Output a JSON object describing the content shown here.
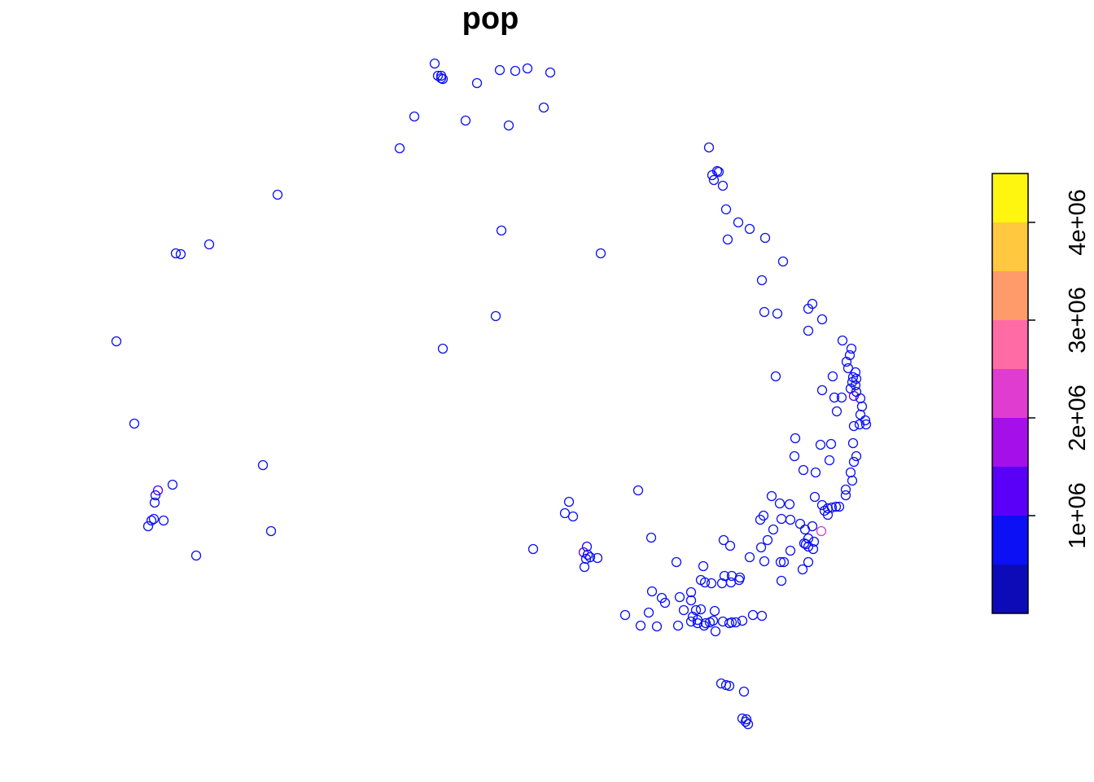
{
  "chart_data": {
    "type": "scatter",
    "title": "pop",
    "xlabel": "",
    "ylabel": "",
    "grid": false,
    "axes_visible": false,
    "marker": "open-circle",
    "legend": {
      "placement": "right",
      "type": "continuous-colorbar",
      "range": [
        0,
        4500000
      ],
      "bins": [
        {
          "from": 0,
          "to": 500000,
          "color": "#0D0BB8"
        },
        {
          "from": 500000,
          "to": 1000000,
          "color": "#0B10F5"
        },
        {
          "from": 1000000,
          "to": 1500000,
          "color": "#5A00F9"
        },
        {
          "from": 1500000,
          "to": 2000000,
          "color": "#A40FEA"
        },
        {
          "from": 2000000,
          "to": 2500000,
          "color": "#E03CD0"
        },
        {
          "from": 2500000,
          "to": 3000000,
          "color": "#FF6BA5"
        },
        {
          "from": 3000000,
          "to": 3500000,
          "color": "#FF9A6B"
        },
        {
          "from": 3500000,
          "to": 4000000,
          "color": "#FFC83F"
        },
        {
          "from": 4000000,
          "to": 4500000,
          "color": "#FFF60F"
        }
      ],
      "ticks": [
        {
          "value": 1000000,
          "label": "1e+06"
        },
        {
          "value": 2000000,
          "label": "2e+06"
        },
        {
          "value": 3000000,
          "label": "3e+06"
        },
        {
          "value": 4000000,
          "label": "4e+06"
        }
      ]
    },
    "points_note": "",
    "points": [
      [
        534,
        78,
        1
      ],
      [
        542,
        93,
        1
      ],
      [
        542,
        96,
        1
      ],
      [
        538,
        93,
        1
      ],
      [
        544,
        97,
        1
      ],
      [
        586,
        102,
        1
      ],
      [
        614,
        86,
        1
      ],
      [
        633,
        87,
        1
      ],
      [
        648,
        84,
        1
      ],
      [
        676,
        89,
        1
      ],
      [
        668,
        132,
        1
      ],
      [
        509,
        143,
        1
      ],
      [
        572,
        148,
        1
      ],
      [
        625,
        154,
        1
      ],
      [
        491,
        182,
        1
      ],
      [
        341,
        239,
        1
      ],
      [
        616,
        283,
        1
      ],
      [
        257,
        300,
        1
      ],
      [
        216,
        311,
        1
      ],
      [
        222,
        312,
        1
      ],
      [
        738,
        311,
        1
      ],
      [
        609,
        388,
        1
      ],
      [
        143,
        419,
        1
      ],
      [
        544,
        428,
        1
      ],
      [
        165,
        520,
        1
      ],
      [
        323,
        571,
        1
      ],
      [
        194,
        602,
        2
      ],
      [
        191,
        608,
        1
      ],
      [
        212,
        595,
        1
      ],
      [
        190,
        617,
        1
      ],
      [
        189,
        637,
        1
      ],
      [
        186,
        639,
        1
      ],
      [
        201,
        639,
        1
      ],
      [
        182,
        646,
        1
      ],
      [
        333,
        652,
        1
      ],
      [
        241,
        682,
        1
      ],
      [
        871,
        181,
        1
      ],
      [
        881,
        210,
        1
      ],
      [
        875,
        215,
        1
      ],
      [
        883,
        211,
        1
      ],
      [
        877,
        221,
        1
      ],
      [
        888,
        228,
        1
      ],
      [
        892,
        257,
        1
      ],
      [
        907,
        273,
        1
      ],
      [
        921,
        281,
        1
      ],
      [
        894,
        294,
        1
      ],
      [
        940,
        292,
        1
      ],
      [
        962,
        321,
        1
      ],
      [
        936,
        344,
        1
      ],
      [
        998,
        373,
        1
      ],
      [
        993,
        379,
        1
      ],
      [
        939,
        383,
        1
      ],
      [
        955,
        385,
        1
      ],
      [
        1010,
        392,
        1
      ],
      [
        993,
        406,
        1
      ],
      [
        1035,
        418,
        1
      ],
      [
        1046,
        428,
        1
      ],
      [
        1044,
        436,
        1
      ],
      [
        1040,
        444,
        1
      ],
      [
        1042,
        452,
        1
      ],
      [
        1051,
        457,
        1
      ],
      [
        1048,
        463,
        1
      ],
      [
        1052,
        465,
        1
      ],
      [
        1047,
        469,
        1
      ],
      [
        1051,
        473,
        1
      ],
      [
        1045,
        477,
        1
      ],
      [
        1052,
        481,
        1
      ],
      [
        1049,
        486,
        2
      ],
      [
        1023,
        462,
        1
      ],
      [
        953,
        462,
        1
      ],
      [
        1010,
        479,
        1
      ],
      [
        1025,
        488,
        1
      ],
      [
        1034,
        488,
        1
      ],
      [
        1057,
        489,
        1
      ],
      [
        1059,
        499,
        1
      ],
      [
        1057,
        509,
        1
      ],
      [
        1028,
        505,
        1
      ],
      [
        1063,
        516,
        1
      ],
      [
        1056,
        521,
        1
      ],
      [
        1064,
        521,
        1
      ],
      [
        1049,
        523,
        1
      ],
      [
        977,
        538,
        1
      ],
      [
        1008,
        546,
        1
      ],
      [
        1021,
        545,
        1
      ],
      [
        1048,
        544,
        1
      ],
      [
        976,
        560,
        1
      ],
      [
        1019,
        565,
        1
      ],
      [
        1052,
        560,
        1
      ],
      [
        1049,
        567,
        1
      ],
      [
        987,
        577,
        1
      ],
      [
        1002,
        580,
        1
      ],
      [
        1045,
        580,
        1
      ],
      [
        1047,
        590,
        1
      ],
      [
        1039,
        601,
        1
      ],
      [
        1039,
        608,
        1
      ],
      [
        948,
        609,
        1
      ],
      [
        958,
        618,
        1
      ],
      [
        970,
        619,
        1
      ],
      [
        1001,
        610,
        1
      ],
      [
        1010,
        620,
        1
      ],
      [
        1017,
        624,
        1
      ],
      [
        1013,
        627,
        1
      ],
      [
        1022,
        623,
        1
      ],
      [
        1027,
        622,
        1
      ],
      [
        1031,
        622,
        1
      ],
      [
        1017,
        632,
        1
      ],
      [
        938,
        633,
        1
      ],
      [
        934,
        638,
        1
      ],
      [
        960,
        637,
        1
      ],
      [
        971,
        638,
        1
      ],
      [
        983,
        643,
        1
      ],
      [
        998,
        646,
        1
      ],
      [
        989,
        650,
        1
      ],
      [
        950,
        650,
        1
      ],
      [
        1009,
        652,
        4
      ],
      [
        993,
        661,
        1
      ],
      [
        1000,
        665,
        1
      ],
      [
        988,
        667,
        1
      ],
      [
        990,
        668,
        1
      ],
      [
        993,
        671,
        1
      ],
      [
        999,
        674,
        1
      ],
      [
        935,
        672,
        1
      ],
      [
        943,
        663,
        1
      ],
      [
        971,
        676,
        1
      ],
      [
        889,
        663,
        1
      ],
      [
        897,
        670,
        1
      ],
      [
        921,
        684,
        1
      ],
      [
        939,
        689,
        1
      ],
      [
        959,
        690,
        1
      ],
      [
        963,
        690,
        1
      ],
      [
        993,
        690,
        1
      ],
      [
        986,
        699,
        1
      ],
      [
        960,
        713,
        1
      ],
      [
        864,
        695,
        1
      ],
      [
        831,
        690,
        1
      ],
      [
        890,
        707,
        1
      ],
      [
        899,
        707,
        1
      ],
      [
        909,
        709,
        1
      ],
      [
        908,
        712,
        1
      ],
      [
        898,
        715,
        1
      ],
      [
        861,
        712,
        1
      ],
      [
        866,
        715,
        1
      ],
      [
        874,
        716,
        1
      ],
      [
        887,
        716,
        1
      ],
      [
        849,
        727,
        1
      ],
      [
        801,
        726,
        1
      ],
      [
        813,
        734,
        1
      ],
      [
        817,
        740,
        1
      ],
      [
        835,
        733,
        1
      ],
      [
        849,
        737,
        1
      ],
      [
        840,
        749,
        1
      ],
      [
        855,
        749,
        1
      ],
      [
        861,
        748,
        1
      ],
      [
        878,
        750,
        1
      ],
      [
        768,
        755,
        1
      ],
      [
        797,
        752,
        1
      ],
      [
        851,
        757,
        1
      ],
      [
        857,
        761,
        1
      ],
      [
        849,
        763,
        1
      ],
      [
        857,
        765,
        1
      ],
      [
        867,
        765,
        1
      ],
      [
        872,
        764,
        1
      ],
      [
        876,
        762,
        1
      ],
      [
        865,
        768,
        1
      ],
      [
        888,
        763,
        1
      ],
      [
        896,
        765,
        1
      ],
      [
        899,
        764,
        1
      ],
      [
        904,
        764,
        1
      ],
      [
        912,
        762,
        1
      ],
      [
        925,
        755,
        1
      ],
      [
        936,
        756,
        1
      ],
      [
        787,
        768,
        1
      ],
      [
        807,
        769,
        1
      ],
      [
        833,
        768,
        1
      ],
      [
        879,
        775,
        1
      ],
      [
        784,
        602,
        1
      ],
      [
        800,
        660,
        1
      ],
      [
        699,
        616,
        1
      ],
      [
        694,
        630,
        1
      ],
      [
        704,
        634,
        1
      ],
      [
        655,
        674,
        1
      ],
      [
        721,
        671,
        1
      ],
      [
        717,
        678,
        2
      ],
      [
        722,
        681,
        1
      ],
      [
        720,
        686,
        1
      ],
      [
        725,
        684,
        1
      ],
      [
        734,
        685,
        1
      ],
      [
        718,
        696,
        1
      ],
      [
        886,
        839,
        1
      ],
      [
        892,
        841,
        1
      ],
      [
        896,
        842,
        1
      ],
      [
        914,
        849,
        1
      ],
      [
        912,
        882,
        1
      ],
      [
        917,
        883,
        1
      ],
      [
        916,
        886,
        1
      ],
      [
        919,
        889,
        1
      ]
    ]
  }
}
